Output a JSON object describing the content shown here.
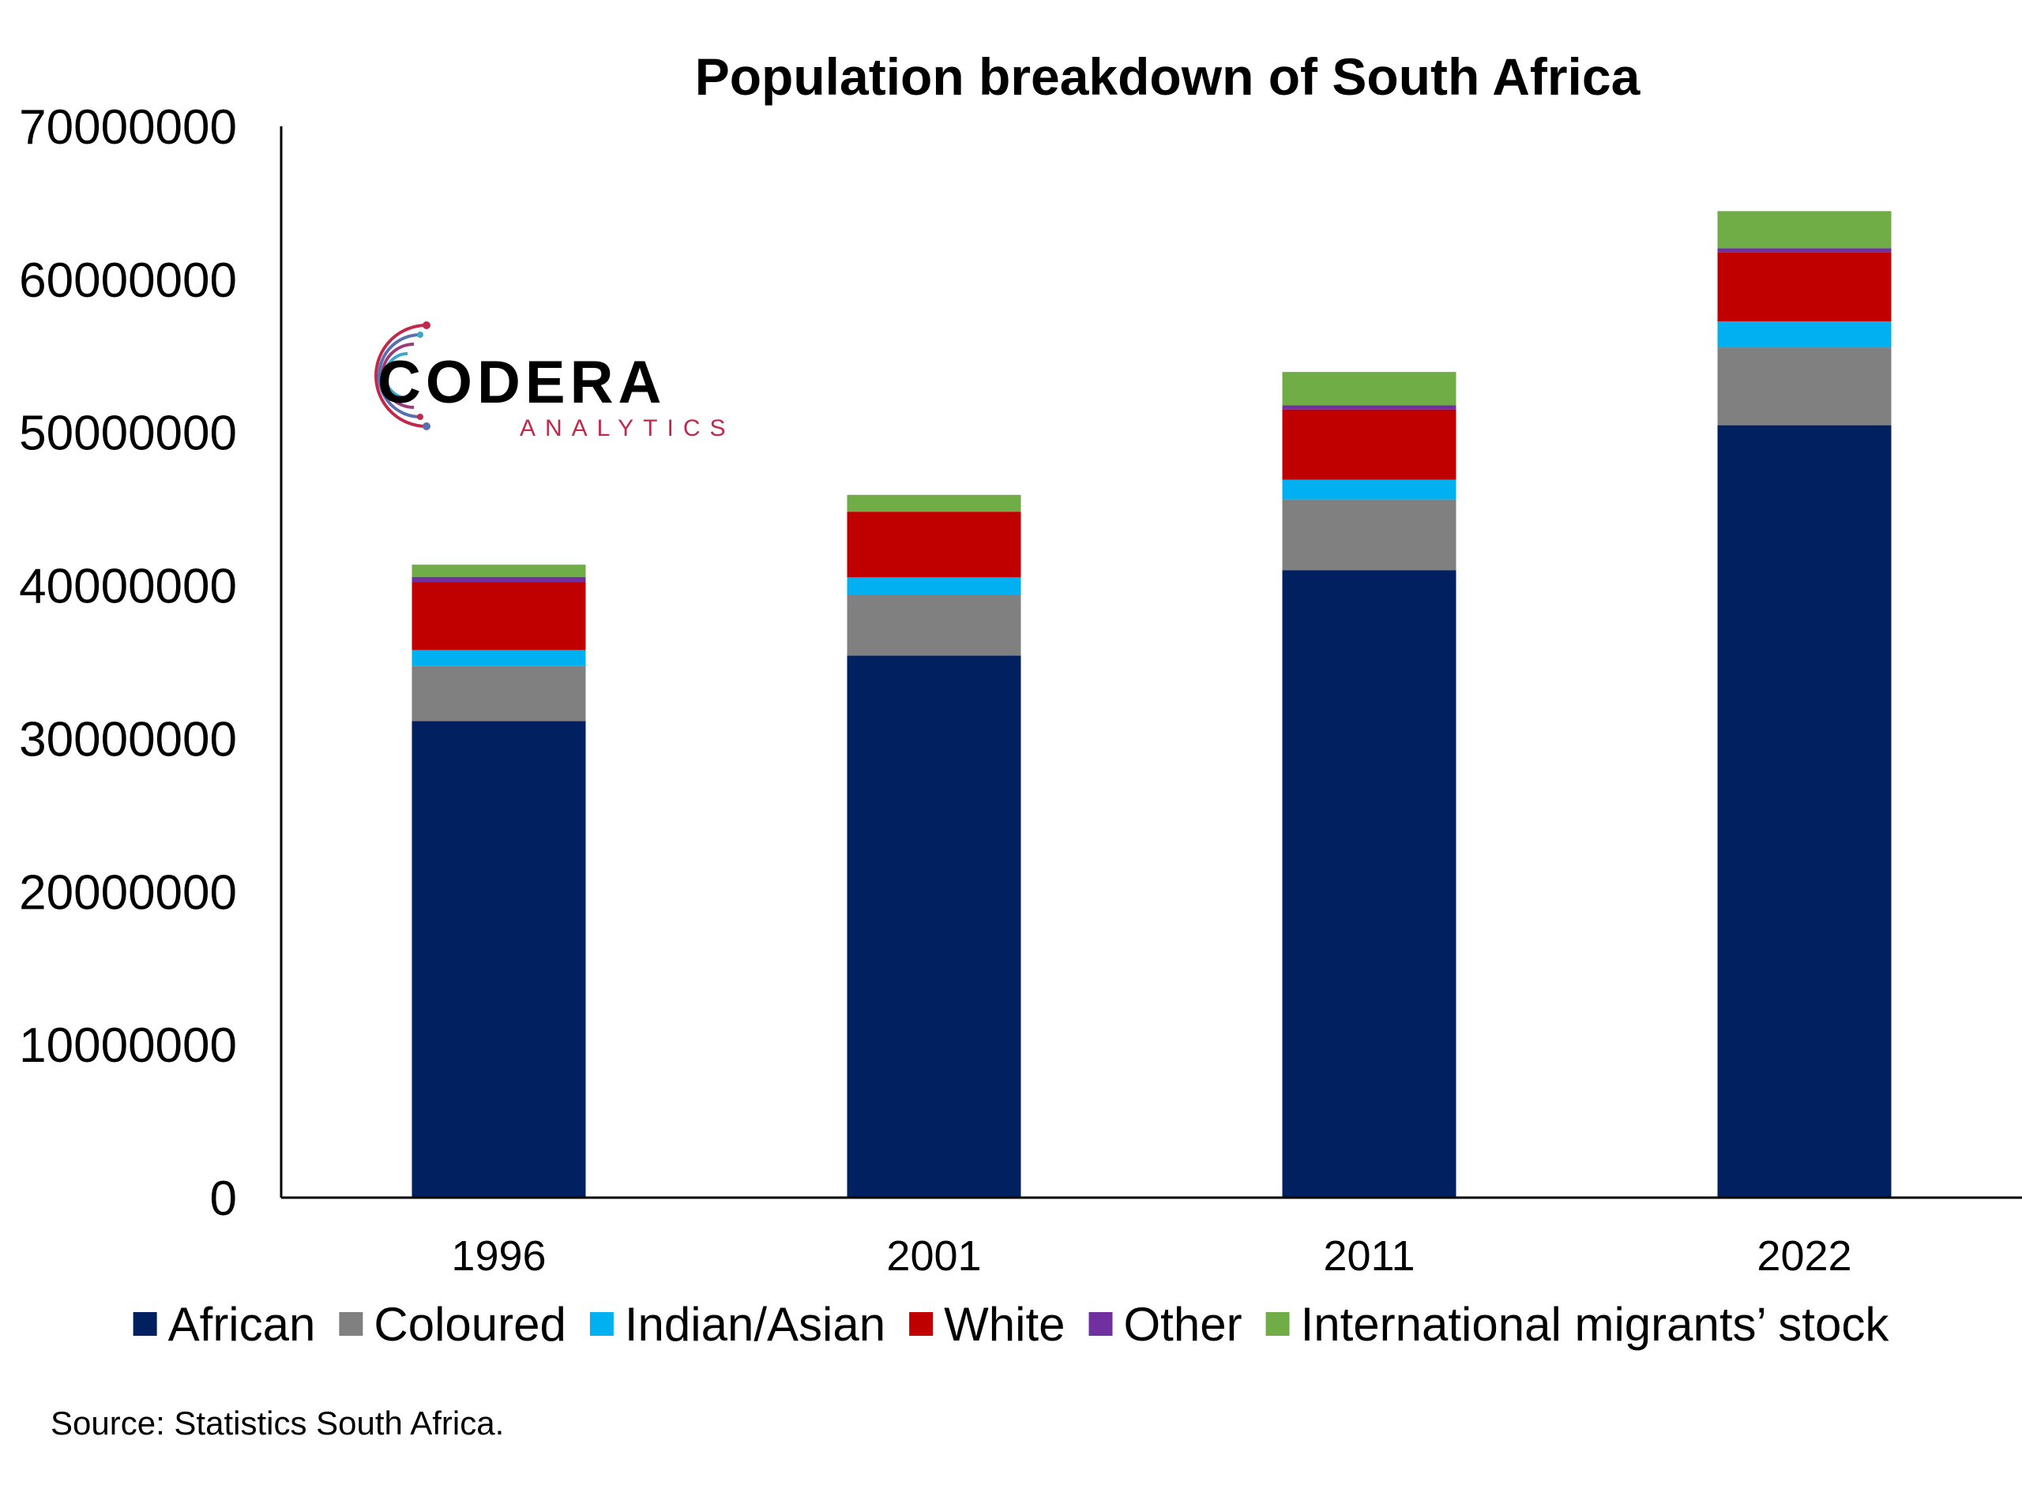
{
  "chart_data": {
    "type": "bar",
    "stacked": true,
    "title": "Population breakdown of South Africa",
    "categories": [
      "1996",
      "2001",
      "2011",
      "2022"
    ],
    "series": [
      {
        "name": "African",
        "color": "#002060",
        "values": [
          31130000,
          35420000,
          41000000,
          50470000
        ]
      },
      {
        "name": "Coloured",
        "color": "#808080",
        "values": [
          3600000,
          3990000,
          4620000,
          5080000
        ]
      },
      {
        "name": "Indian/Asian",
        "color": "#00B0F0",
        "values": [
          1050000,
          1120000,
          1290000,
          1700000
        ]
      },
      {
        "name": "White",
        "color": "#C00000",
        "values": [
          4430000,
          4290000,
          4590000,
          4500000
        ]
      },
      {
        "name": "Other",
        "color": "#7030A0",
        "values": [
          350000,
          0,
          280000,
          290000
        ]
      },
      {
        "name": "International migrants’ stock",
        "color": "#70AD47",
        "values": [
          800000,
          1100000,
          2170000,
          2420000
        ]
      }
    ],
    "ylim": [
      0,
      70000000
    ],
    "yticks": [
      "0",
      "10000000",
      "20000000",
      "30000000",
      "40000000",
      "50000000",
      "60000000",
      "70000000"
    ],
    "legend_position": "bottom",
    "grid": false
  },
  "logo": {
    "name": "CODERA",
    "subtitle": "ANALYTICS"
  },
  "source": "Source: Statistics South Africa."
}
